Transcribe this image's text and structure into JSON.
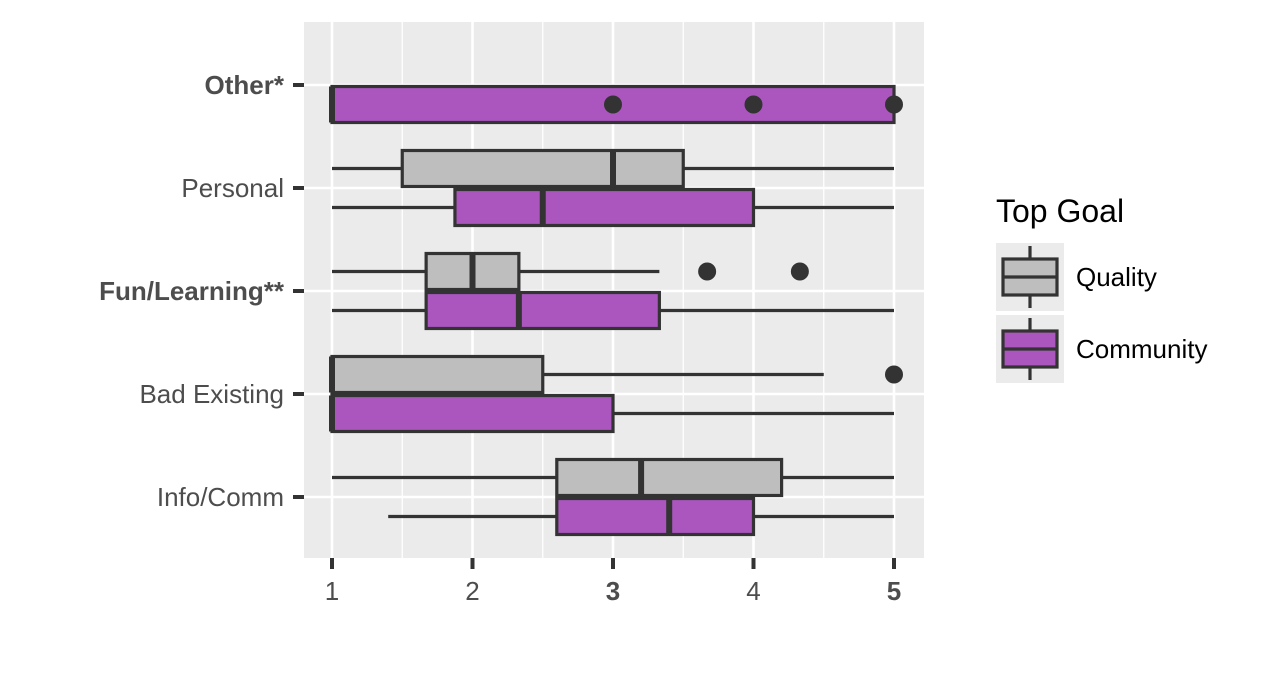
{
  "chart_data": {
    "type": "boxplot",
    "orientation": "horizontal",
    "categories": [
      "Other*",
      "Personal",
      "Fun/Learning**",
      "Bad Existing",
      "Info/Comm"
    ],
    "bold_categories": [
      "Other*",
      "Fun/Learning**"
    ],
    "x_ticks": [
      1,
      2,
      3,
      4,
      5
    ],
    "bold_x_ticks": [
      3,
      5
    ],
    "xlim": [
      0.8,
      5.2
    ],
    "grid": true,
    "legend": {
      "title": "Top Goal",
      "position": "right",
      "entries": [
        "Quality",
        "Community"
      ]
    },
    "colors": {
      "panel": "#ebebeb",
      "grid": "#ffffff",
      "stroke": "#333333",
      "Quality": "#bebebe",
      "Community": "#ab56be"
    },
    "series": [
      {
        "name": "Quality",
        "boxes": [
          null,
          {
            "whisker_low": 1,
            "q1": 1.5,
            "median": 3,
            "q3": 3.5,
            "whisker_high": 5,
            "outliers": []
          },
          {
            "whisker_low": 1,
            "q1": 1.67,
            "median": 2,
            "q3": 2.33,
            "whisker_high": 3.33,
            "outliers": [
              3.67,
              4.33
            ]
          },
          {
            "whisker_low": 1,
            "q1": 1,
            "median": 1,
            "q3": 2.5,
            "whisker_high": 4.5,
            "outliers": [
              5
            ]
          },
          {
            "whisker_low": 1,
            "q1": 2.6,
            "median": 3.2,
            "q3": 4.2,
            "whisker_high": 5,
            "outliers": []
          }
        ]
      },
      {
        "name": "Community",
        "boxes": [
          {
            "whisker_low": 1,
            "q1": 1,
            "median": 1,
            "q3": 5,
            "whisker_high": 5,
            "outliers": [
              3,
              4,
              5
            ]
          },
          {
            "whisker_low": 1,
            "q1": 1.875,
            "median": 2.5,
            "q3": 4,
            "whisker_high": 5,
            "outliers": []
          },
          {
            "whisker_low": 1,
            "q1": 1.67,
            "median": 2.33,
            "q3": 3.33,
            "whisker_high": 5,
            "outliers": []
          },
          {
            "whisker_low": 1,
            "q1": 1,
            "median": 1,
            "q3": 3,
            "whisker_high": 5,
            "outliers": []
          },
          {
            "whisker_low": 1.4,
            "q1": 2.6,
            "median": 3.4,
            "q3": 4,
            "whisker_high": 5,
            "outliers": []
          }
        ]
      }
    ]
  }
}
